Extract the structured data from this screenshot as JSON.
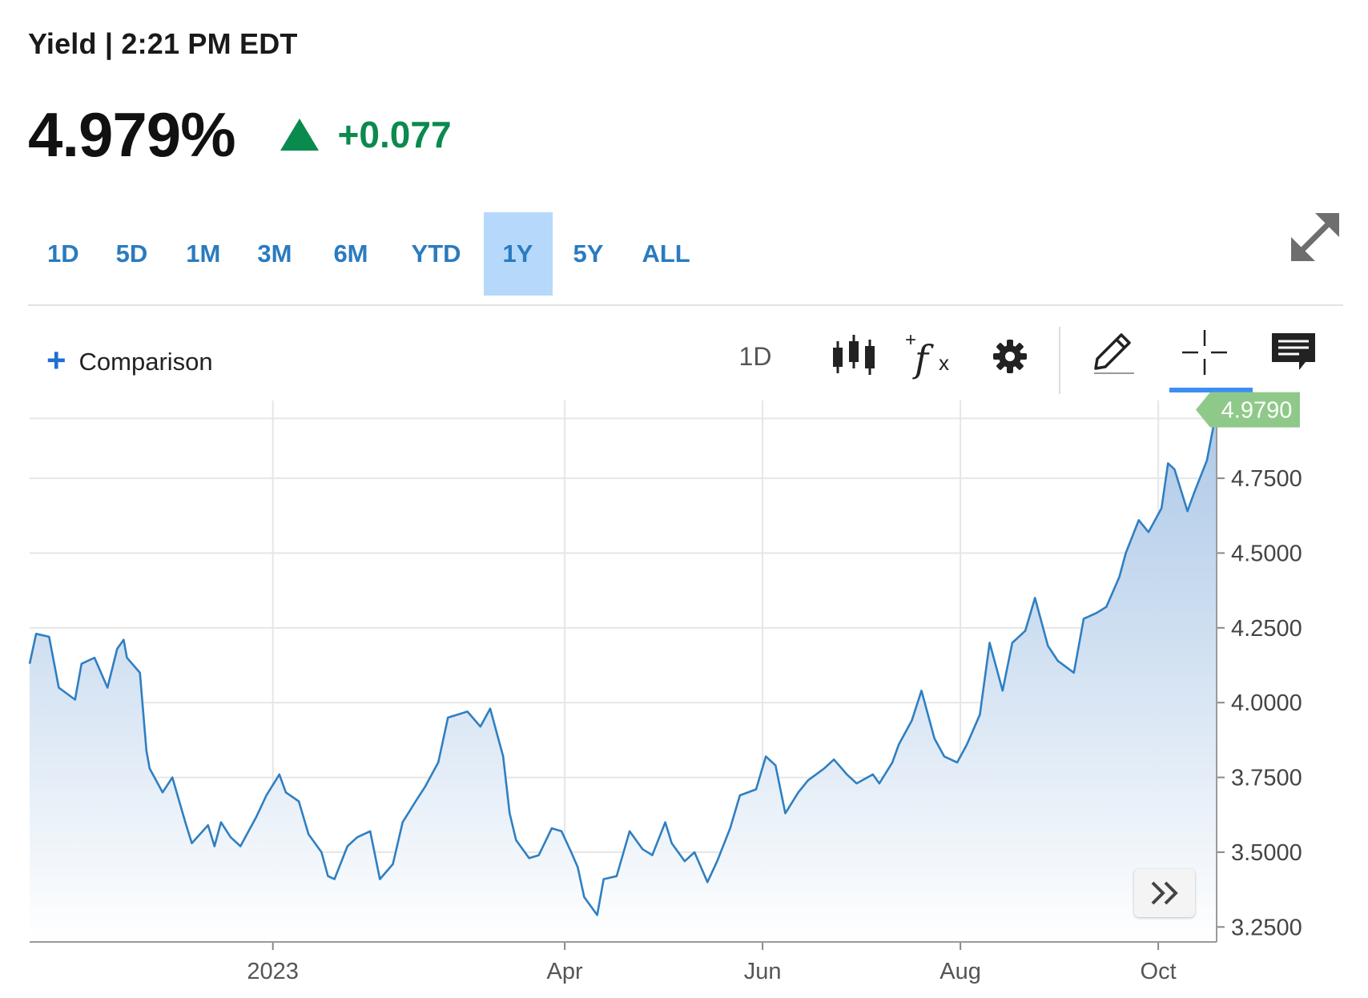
{
  "header": {
    "title": "Yield | 2:21 PM EDT",
    "price": "4.979%",
    "change": "+0.077",
    "change_color": "#0b8a4e"
  },
  "range_tabs": [
    {
      "label": "1D",
      "active": false
    },
    {
      "label": "5D",
      "active": false
    },
    {
      "label": "1M",
      "active": false
    },
    {
      "label": "3M",
      "active": false
    },
    {
      "label": "6M",
      "active": false
    },
    {
      "label": "YTD",
      "active": false
    },
    {
      "label": "1Y",
      "active": true
    },
    {
      "label": "5Y",
      "active": false
    },
    {
      "label": "ALL",
      "active": false
    }
  ],
  "toolbar": {
    "comparison_label": "Comparison",
    "interval_label": "1D",
    "icons": [
      "candlestick-icon",
      "function-icon",
      "gear-icon",
      "pencil-icon",
      "crosshair-icon",
      "comment-icon"
    ],
    "active_tool": "crosshair-icon",
    "accent_color": "#3d8ef2"
  },
  "chart_data": {
    "type": "area",
    "line_color": "#2f7fc1",
    "fill_color": "#c4d9ef",
    "current_value_label": "4.9790",
    "current_value_color": "#8fc98a",
    "y_tick_labels": [
      "4.7500",
      "4.5000",
      "4.2500",
      "4.0000",
      "3.7500",
      "3.5000",
      "3.2500"
    ],
    "y_ticks": [
      3.25,
      3.5,
      3.75,
      4.0,
      4.25,
      4.5,
      4.75
    ],
    "ylim": [
      3.2,
      5.01
    ],
    "x_tick_labels": [
      "2023",
      "Apr",
      "Jun",
      "Aug",
      "Oct"
    ],
    "x_ticks": [
      "2023-01-01",
      "2023-04-01",
      "2023-06-01",
      "2023-08-01",
      "2023-10-01"
    ],
    "xlim": [
      "2022-10-18",
      "2023-10-19"
    ],
    "grid": true,
    "series": [
      {
        "x": [
          "2022-10-18",
          "2022-10-20",
          "2022-10-24",
          "2022-10-27",
          "2022-11-01",
          "2022-11-03",
          "2022-11-07",
          "2022-11-09",
          "2022-11-11",
          "2022-11-14",
          "2022-11-16",
          "2022-11-17",
          "2022-11-21",
          "2022-11-23",
          "2022-11-24",
          "2022-11-28",
          "2022-12-01",
          "2022-12-05",
          "2022-12-07",
          "2022-12-12",
          "2022-12-14",
          "2022-12-16",
          "2022-12-19",
          "2022-12-22",
          "2022-12-27",
          "2022-12-30",
          "2023-01-03",
          "2023-01-05",
          "2023-01-09",
          "2023-01-12",
          "2023-01-16",
          "2023-01-18",
          "2023-01-20",
          "2023-01-24",
          "2023-01-27",
          "2023-01-31",
          "2023-02-03",
          "2023-02-07",
          "2023-02-10",
          "2023-02-14",
          "2023-02-17",
          "2023-02-21",
          "2023-02-24",
          "2023-03-02",
          "2023-03-06",
          "2023-03-09",
          "2023-03-13",
          "2023-03-15",
          "2023-03-17",
          "2023-03-21",
          "2023-03-24",
          "2023-03-28",
          "2023-03-31",
          "2023-04-03",
          "2023-04-05",
          "2023-04-07",
          "2023-04-11",
          "2023-04-13",
          "2023-04-17",
          "2023-04-21",
          "2023-04-25",
          "2023-04-28",
          "2023-05-02",
          "2023-05-04",
          "2023-05-08",
          "2023-05-11",
          "2023-05-15",
          "2023-05-18",
          "2023-05-22",
          "2023-05-25",
          "2023-05-30",
          "2023-06-02",
          "2023-06-05",
          "2023-06-08",
          "2023-06-12",
          "2023-06-15",
          "2023-06-20",
          "2023-06-23",
          "2023-06-27",
          "2023-06-30",
          "2023-07-05",
          "2023-07-07",
          "2023-07-11",
          "2023-07-13",
          "2023-07-17",
          "2023-07-20",
          "2023-07-24",
          "2023-07-27",
          "2023-07-31",
          "2023-08-03",
          "2023-08-07",
          "2023-08-10",
          "2023-08-14",
          "2023-08-17",
          "2023-08-21",
          "2023-08-24",
          "2023-08-28",
          "2023-08-31",
          "2023-09-05",
          "2023-09-08",
          "2023-09-12",
          "2023-09-15",
          "2023-09-19",
          "2023-09-21",
          "2023-09-25",
          "2023-09-28",
          "2023-10-02",
          "2023-10-04",
          "2023-10-06",
          "2023-10-10",
          "2023-10-12",
          "2023-10-16",
          "2023-10-19"
        ],
        "y": [
          4.13,
          4.23,
          4.22,
          4.05,
          4.01,
          4.13,
          4.15,
          4.1,
          4.05,
          4.18,
          4.21,
          4.15,
          4.1,
          3.84,
          3.78,
          3.7,
          3.75,
          3.6,
          3.53,
          3.59,
          3.52,
          3.6,
          3.55,
          3.52,
          3.62,
          3.69,
          3.76,
          3.7,
          3.67,
          3.56,
          3.5,
          3.42,
          3.41,
          3.52,
          3.55,
          3.57,
          3.41,
          3.46,
          3.6,
          3.67,
          3.72,
          3.8,
          3.95,
          3.97,
          3.92,
          3.98,
          3.82,
          3.63,
          3.54,
          3.48,
          3.49,
          3.58,
          3.57,
          3.5,
          3.45,
          3.35,
          3.29,
          3.41,
          3.42,
          3.57,
          3.51,
          3.49,
          3.6,
          3.53,
          3.47,
          3.5,
          3.4,
          3.47,
          3.58,
          3.69,
          3.71,
          3.82,
          3.79,
          3.63,
          3.7,
          3.74,
          3.78,
          3.81,
          3.76,
          3.73,
          3.76,
          3.73,
          3.8,
          3.86,
          3.94,
          4.04,
          3.88,
          3.82,
          3.8,
          3.86,
          3.96,
          4.2,
          4.04,
          4.2,
          4.24,
          4.35,
          4.19,
          4.14,
          4.1,
          4.28,
          4.3,
          4.32,
          4.42,
          4.5,
          4.61,
          4.57,
          4.65,
          4.8,
          4.78,
          4.64,
          4.7,
          4.81,
          4.979
        ]
      }
    ]
  }
}
